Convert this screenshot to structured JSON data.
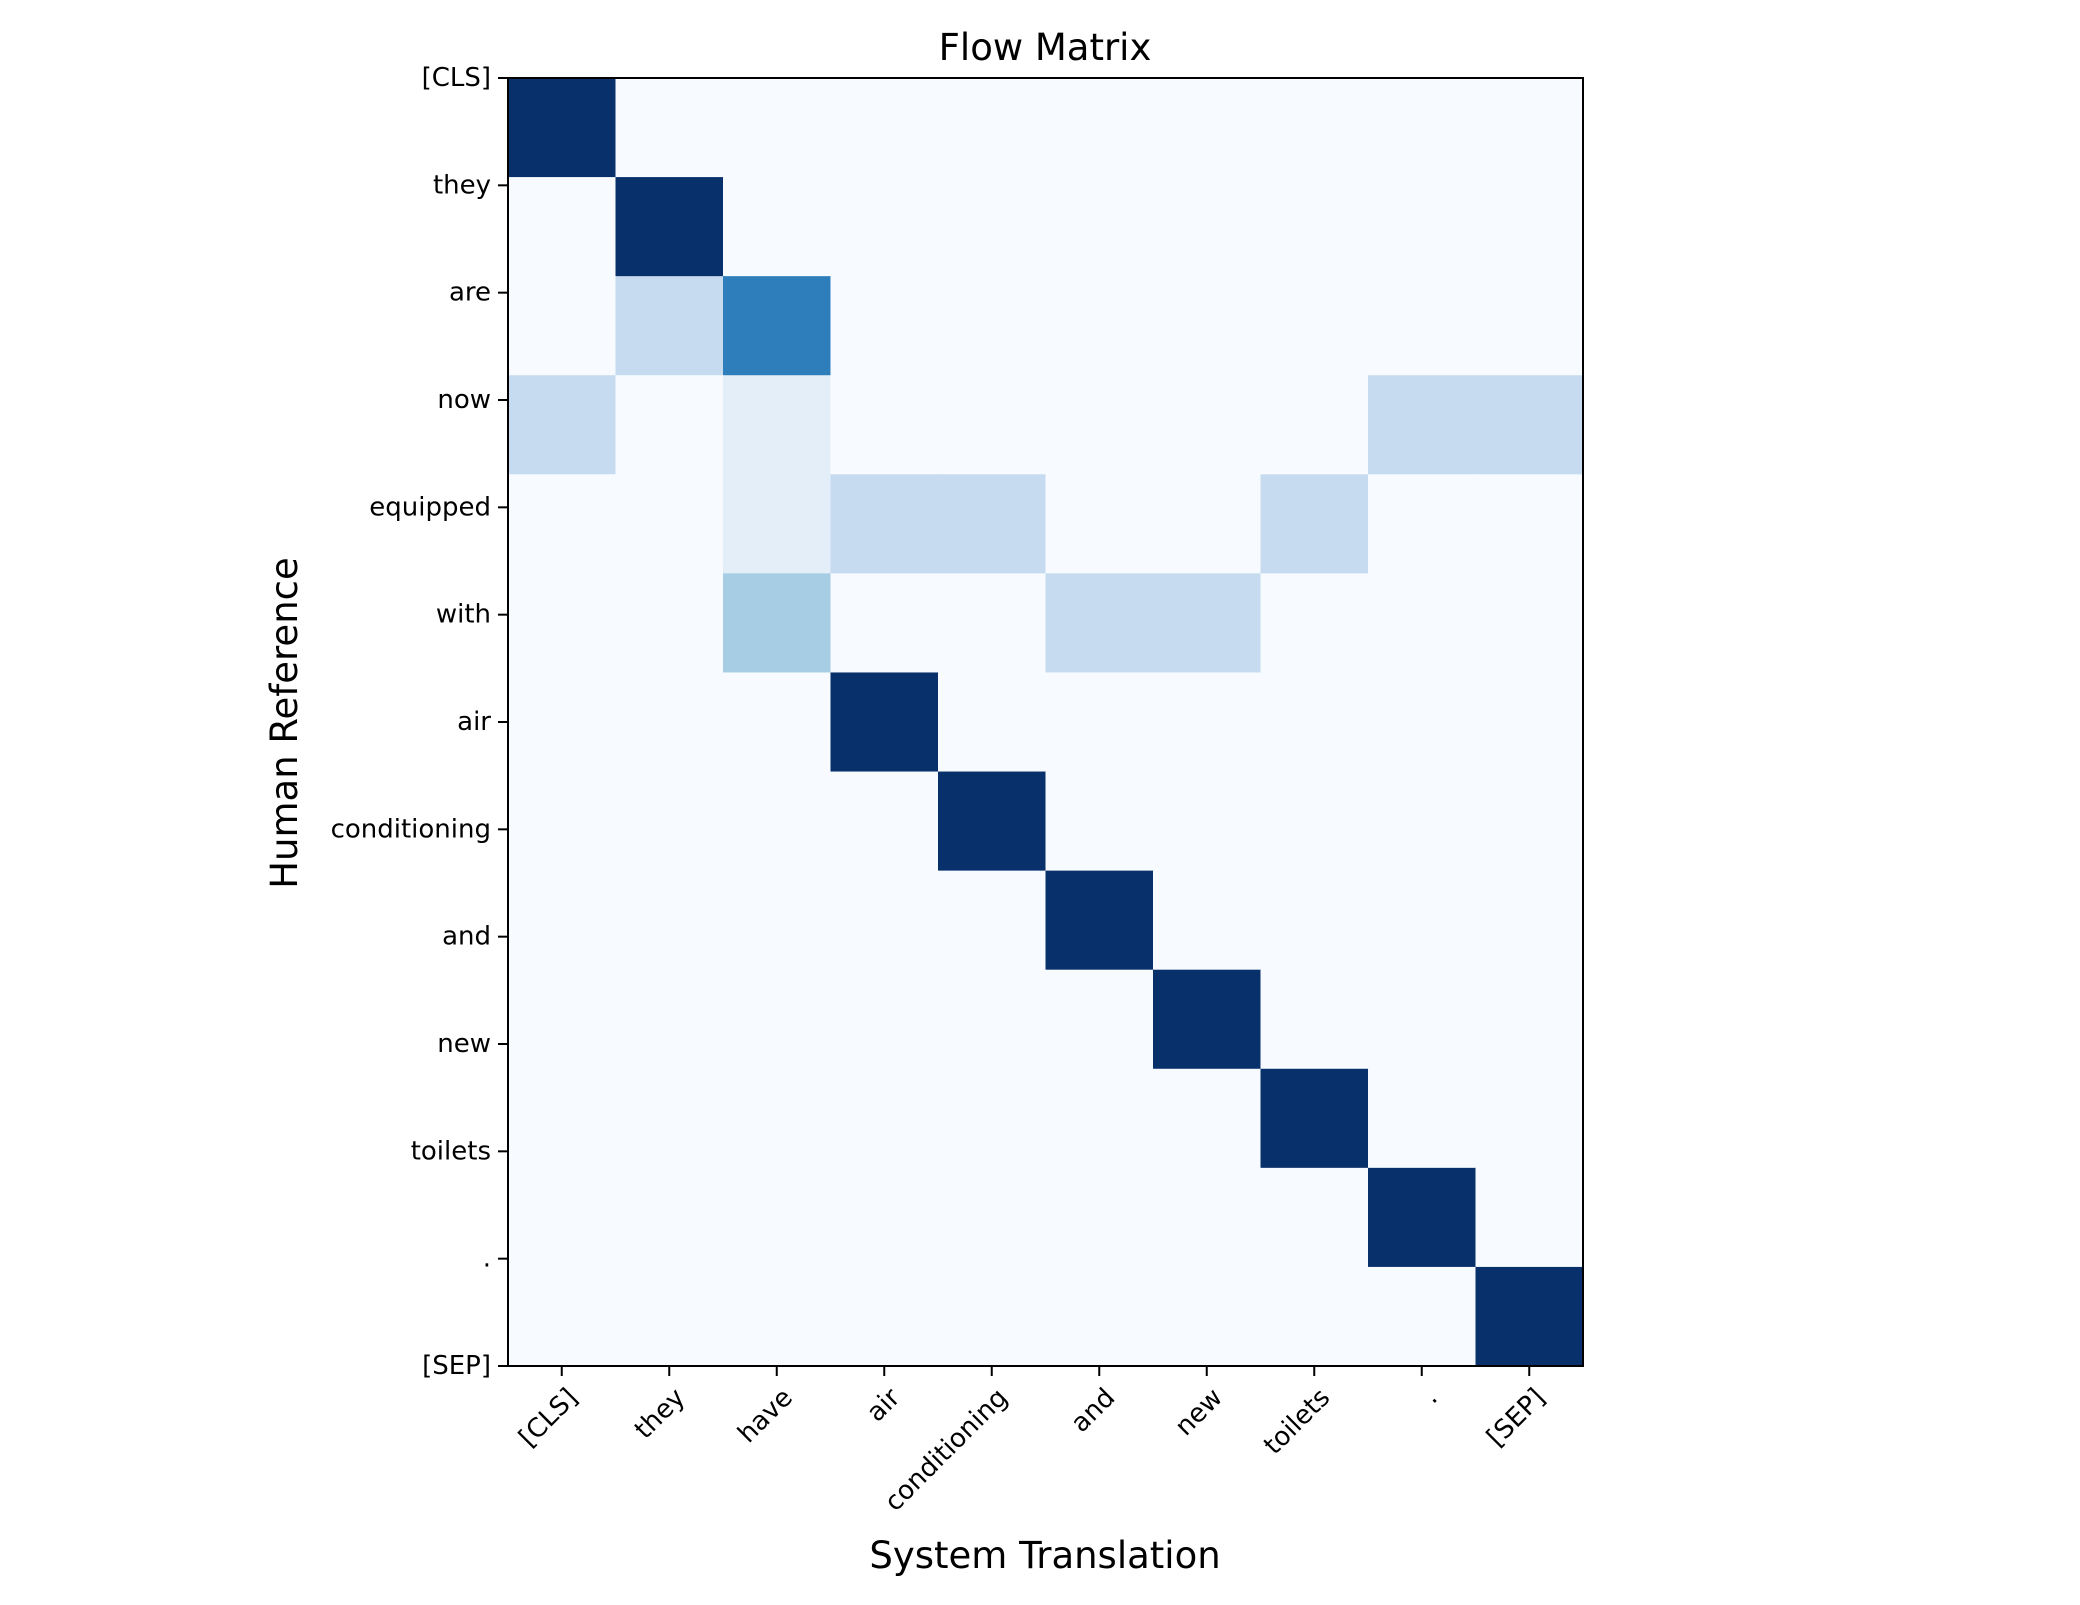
{
  "chart_data": {
    "type": "heatmap",
    "title": "Flow Matrix",
    "xlabel": "System Translation",
    "ylabel": "Human Reference",
    "x_categories": [
      "[CLS]",
      "they",
      "have",
      "air",
      "conditioning",
      "and",
      "new",
      "toilets",
      ".",
      "[SEP]"
    ],
    "y_categories": [
      "[CLS]",
      "they",
      "are",
      "now",
      "equipped",
      "with",
      "air",
      "conditioning",
      "and",
      "new",
      "toilets",
      ".",
      "[SEP]"
    ],
    "colormap": "Blues",
    "value_range": [
      0,
      1
    ],
    "values": [
      [
        1.0,
        0,
        0,
        0,
        0,
        0,
        0,
        0,
        0,
        0
      ],
      [
        0,
        1.0,
        0,
        0,
        0,
        0,
        0,
        0,
        0,
        0
      ],
      [
        0,
        0.25,
        0.7,
        0,
        0,
        0,
        0,
        0,
        0,
        0
      ],
      [
        0.25,
        0,
        0.1,
        0,
        0,
        0,
        0,
        0,
        0.25,
        0.25
      ],
      [
        0,
        0,
        0.1,
        0.25,
        0.25,
        0,
        0,
        0.25,
        0,
        0
      ],
      [
        0,
        0,
        0.35,
        0,
        0,
        0.25,
        0.25,
        0,
        0,
        0
      ],
      [
        0,
        0,
        0,
        1.0,
        0,
        0,
        0,
        0,
        0,
        0
      ],
      [
        0,
        0,
        0,
        0,
        1.0,
        0,
        0,
        0,
        0,
        0
      ],
      [
        0,
        0,
        0,
        0,
        0,
        1.0,
        0,
        0,
        0,
        0
      ],
      [
        0,
        0,
        0,
        0,
        0,
        0,
        1.0,
        0,
        0,
        0
      ],
      [
        0,
        0,
        0,
        0,
        0,
        0,
        0,
        1.0,
        0,
        0
      ],
      [
        0,
        0,
        0,
        0,
        0,
        0,
        0,
        0,
        1.0,
        0
      ],
      [
        0,
        0,
        0,
        0,
        0,
        0,
        0,
        0,
        0,
        1.0
      ]
    ],
    "grid": false
  }
}
